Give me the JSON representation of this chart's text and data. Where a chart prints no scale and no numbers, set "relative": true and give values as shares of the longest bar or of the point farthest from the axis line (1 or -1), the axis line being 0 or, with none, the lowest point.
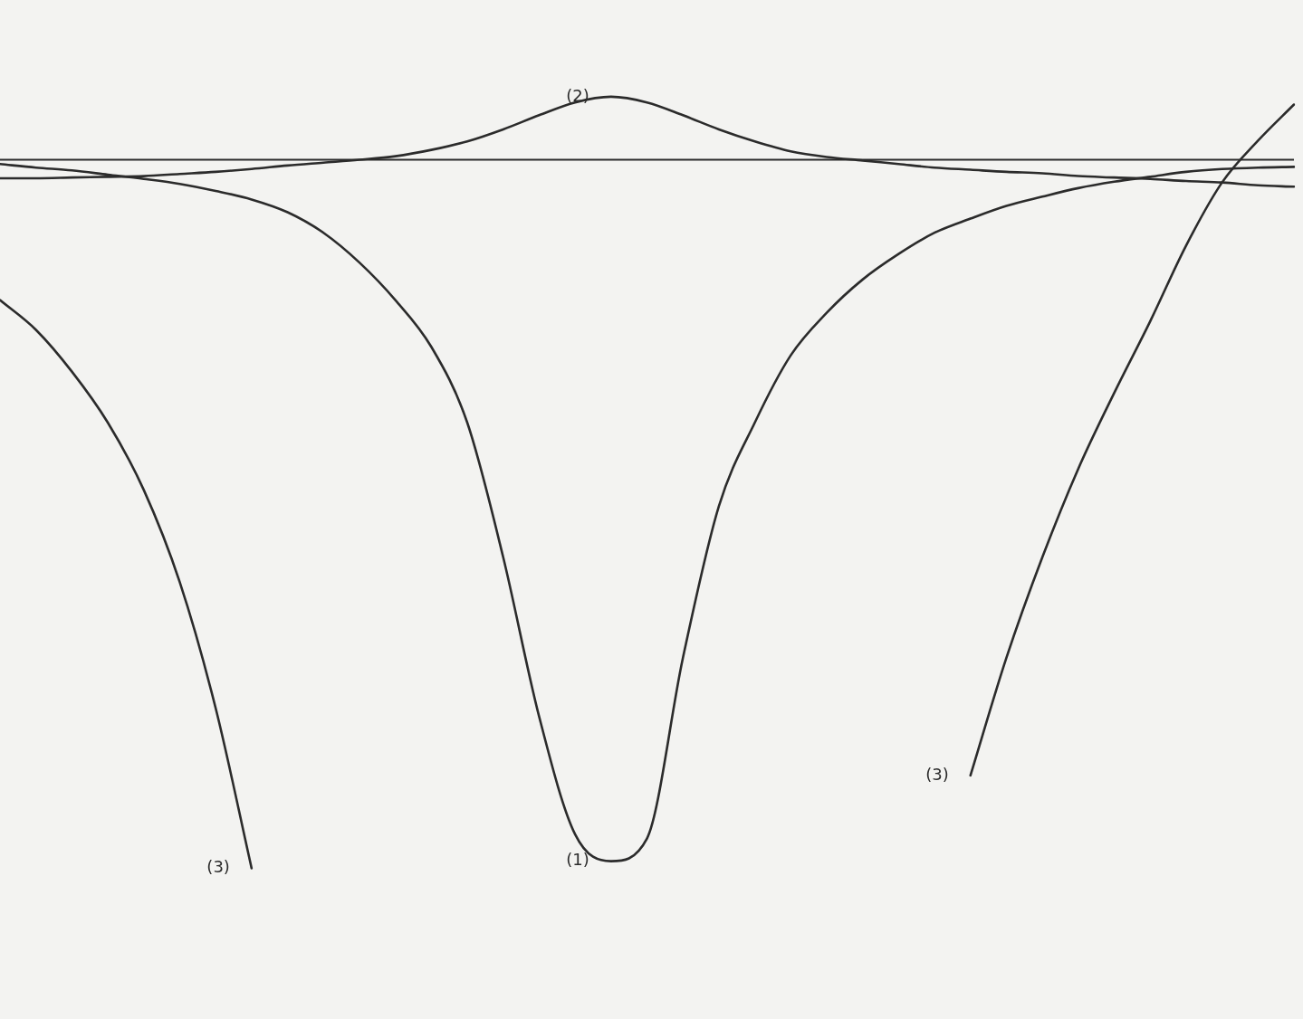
{
  "chart_data": {
    "type": "line",
    "relative": true,
    "categories": [
      null,
      null,
      null,
      null,
      null,
      null,
      null,
      null,
      null,
      null,
      null,
      null,
      null,
      null,
      null,
      null,
      null,
      null,
      null,
      null,
      null,
      null,
      null,
      null,
      null,
      null,
      null,
      null,
      null,
      null,
      null,
      null,
      null,
      null,
      null,
      null,
      null
    ],
    "legend": false,
    "marker": "none",
    "line_style": "solid",
    "series": [
      {
        "name": "(1)",
        "color": "#2b2b2b",
        "values": [
          -0.006,
          -0.011,
          -0.015,
          -0.021,
          -0.027,
          -0.034,
          -0.044,
          -0.056,
          -0.074,
          -0.103,
          -0.145,
          -0.198,
          -0.264,
          -0.371,
          -0.561,
          -0.786,
          -0.952,
          -0.99,
          -0.958,
          -0.703,
          -0.489,
          -0.371,
          -0.276,
          -0.216,
          -0.169,
          -0.133,
          -0.103,
          -0.083,
          -0.065,
          -0.052,
          -0.04,
          -0.031,
          -0.024,
          -0.017,
          -0.013,
          -0.011,
          -0.01
        ]
      },
      {
        "name": "(2)",
        "color": "#2b2b2b",
        "values": [
          -0.026,
          -0.026,
          -0.025,
          -0.024,
          -0.023,
          -0.02,
          -0.017,
          -0.013,
          -0.008,
          -0.004,
          0,
          0.005,
          0.014,
          0.026,
          0.043,
          0.063,
          0.081,
          0.089,
          0.081,
          0.063,
          0.043,
          0.026,
          0.012,
          0.004,
          -0.001,
          -0.006,
          -0.011,
          -0.014,
          -0.017,
          -0.019,
          -0.023,
          -0.025,
          -0.027,
          -0.03,
          -0.032,
          -0.036,
          -0.038
        ]
      },
      {
        "name": "(3)",
        "color": "#2b2b2b",
        "values": [
          -0.198,
          -0.24,
          -0.299,
          -0.371,
          -0.466,
          -0.596,
          -0.774,
          -1,
          null,
          null,
          null,
          null,
          null,
          null,
          null,
          null,
          null,
          null,
          null,
          null,
          null,
          null,
          null,
          null,
          null,
          null,
          null,
          null,
          null,
          null,
          null,
          null,
          null,
          null,
          null,
          null,
          null
        ]
      },
      {
        "name": "(3)",
        "color": "#2b2b2b",
        "values": [
          null,
          null,
          null,
          null,
          null,
          null,
          null,
          null,
          null,
          null,
          null,
          null,
          null,
          null,
          null,
          null,
          null,
          null,
          null,
          null,
          null,
          null,
          null,
          null,
          null,
          null,
          null,
          -0.869,
          -0.703,
          -0.561,
          -0.436,
          -0.329,
          -0.228,
          -0.121,
          -0.032,
          0.027,
          0.078
        ]
      }
    ]
  }
}
